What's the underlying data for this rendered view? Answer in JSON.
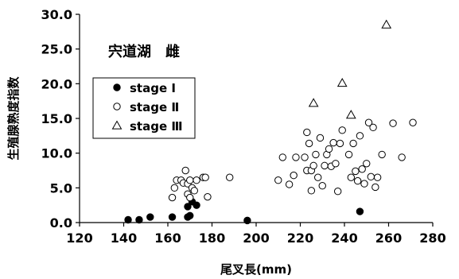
{
  "chart_data": {
    "type": "scatter",
    "title": "宍道湖　雌",
    "xlabel": "尾叉長(mm)",
    "ylabel": "生殖腺熟度指数",
    "xlim": [
      120,
      280
    ],
    "ylim": [
      0,
      30
    ],
    "xticks": [
      "120",
      "140",
      "160",
      "180",
      "200",
      "220",
      "240",
      "260",
      "280"
    ],
    "yticks": [
      "0.0",
      "5.0",
      "10.0",
      "15.0",
      "20.0",
      "25.0",
      "30.0"
    ],
    "grid": false,
    "legend_position": "left",
    "series": [
      {
        "name": "stage Ⅰ",
        "marker": "filled-circle",
        "points": [
          [
            142,
            0.4
          ],
          [
            147,
            0.4
          ],
          [
            152,
            0.8
          ],
          [
            162,
            0.8
          ],
          [
            169,
            2.3
          ],
          [
            169,
            0.8
          ],
          [
            170,
            1.0
          ],
          [
            171,
            3.0
          ],
          [
            173,
            2.5
          ],
          [
            196,
            0.3
          ],
          [
            247,
            1.6
          ]
        ]
      },
      {
        "name": "stage Ⅱ",
        "marker": "open-circle",
        "points": [
          [
            162,
            3.6
          ],
          [
            163,
            5.0
          ],
          [
            164,
            6.1
          ],
          [
            166,
            6.1
          ],
          [
            167,
            5.7
          ],
          [
            168,
            7.5
          ],
          [
            169,
            4.1
          ],
          [
            169,
            5.6
          ],
          [
            170,
            6.1
          ],
          [
            170,
            3.6
          ],
          [
            171,
            5.0
          ],
          [
            172,
            4.6
          ],
          [
            173,
            6.1
          ],
          [
            176,
            6.5
          ],
          [
            177,
            6.5
          ],
          [
            178,
            3.7
          ],
          [
            188,
            6.5
          ],
          [
            210,
            6.1
          ],
          [
            212,
            9.4
          ],
          [
            215,
            5.5
          ],
          [
            217,
            6.8
          ],
          [
            218,
            9.4
          ],
          [
            222,
            9.4
          ],
          [
            223,
            13.0
          ],
          [
            223,
            7.5
          ],
          [
            224,
            11.4
          ],
          [
            225,
            7.5
          ],
          [
            225,
            4.6
          ],
          [
            226,
            8.2
          ],
          [
            227,
            9.8
          ],
          [
            228,
            6.5
          ],
          [
            229,
            12.2
          ],
          [
            230,
            5.3
          ],
          [
            231,
            8.2
          ],
          [
            232,
            9.8
          ],
          [
            233,
            10.6
          ],
          [
            234,
            8.1
          ],
          [
            235,
            11.5
          ],
          [
            236,
            8.5
          ],
          [
            237,
            4.5
          ],
          [
            238,
            11.4
          ],
          [
            239,
            13.3
          ],
          [
            242,
            9.8
          ],
          [
            243,
            6.5
          ],
          [
            244,
            11.4
          ],
          [
            245,
            7.4
          ],
          [
            246,
            6.0
          ],
          [
            247,
            12.5
          ],
          [
            248,
            7.7
          ],
          [
            249,
            5.6
          ],
          [
            250,
            8.5
          ],
          [
            251,
            14.4
          ],
          [
            252,
            6.6
          ],
          [
            253,
            13.7
          ],
          [
            254,
            5.1
          ],
          [
            255,
            6.5
          ],
          [
            257,
            9.8
          ],
          [
            262,
            14.3
          ],
          [
            266,
            9.4
          ],
          [
            271,
            14.4
          ]
        ]
      },
      {
        "name": "stage Ⅲ",
        "marker": "open-triangle",
        "points": [
          [
            226,
            17.2
          ],
          [
            239,
            20.1
          ],
          [
            243,
            15.5
          ],
          [
            259,
            28.5
          ]
        ]
      }
    ]
  }
}
